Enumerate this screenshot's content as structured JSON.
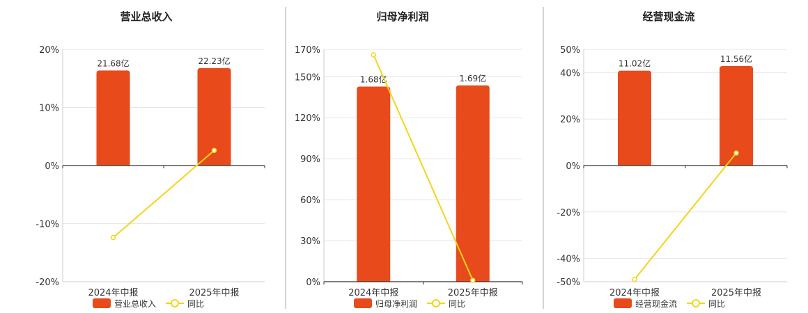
{
  "colors": {
    "bar": "#e84a1b",
    "line": "#f5d41a",
    "grid": "#e6e6ee",
    "axis": "#333333",
    "divider": "#aaaaaa"
  },
  "legend_line_name": "同比",
  "chart_data": [
    {
      "type": "bar",
      "title": "营业总收入",
      "categories": [
        "2024年中报",
        "2025年中报"
      ],
      "series": [
        {
          "name": "营业总收入",
          "type": "bar",
          "values": [
            21.68,
            22.23
          ],
          "labels": [
            "21.68亿",
            "22.23亿"
          ]
        },
        {
          "name": "同比",
          "type": "line",
          "values": [
            -12.4,
            2.6
          ]
        }
      ],
      "yticks": [
        20,
        10,
        0,
        -10,
        -20
      ],
      "ytick_labels": [
        "20%",
        "10%",
        "0%",
        "-10%",
        "-20%"
      ],
      "ylim": [
        -20,
        20
      ],
      "bar_scale_max": 26.5,
      "grid": true,
      "legend": "bottom"
    },
    {
      "type": "bar",
      "title": "归母净利润",
      "categories": [
        "2024年中报",
        "2025年中报"
      ],
      "series": [
        {
          "name": "归母净利润",
          "type": "bar",
          "values": [
            1.68,
            1.69
          ],
          "labels": [
            "1.68亿",
            "1.69亿"
          ]
        },
        {
          "name": "同比",
          "type": "line",
          "values": [
            166,
            1
          ]
        }
      ],
      "yticks": [
        170,
        150,
        120,
        90,
        60,
        30,
        0
      ],
      "ytick_labels": [
        "170%",
        "150%",
        "120%",
        "90%",
        "60%",
        "30%",
        "0%"
      ],
      "ylim": [
        0,
        170
      ],
      "bar_scale_max": 2.0,
      "grid": true,
      "legend": "bottom"
    },
    {
      "type": "bar",
      "title": "经营现金流",
      "categories": [
        "2024年中报",
        "2025年中报"
      ],
      "series": [
        {
          "name": "经营现金流",
          "type": "bar",
          "values": [
            11.02,
            11.56
          ],
          "labels": [
            "11.02亿",
            "11.56亿"
          ]
        },
        {
          "name": "同比",
          "type": "line",
          "values": [
            -49,
            5.4
          ]
        }
      ],
      "yticks": [
        50,
        40,
        20,
        0,
        -20,
        -40,
        -50
      ],
      "ytick_labels": [
        "50%",
        "40%",
        "20%",
        "0%",
        "-20%",
        "-40%",
        "-50%"
      ],
      "ylim": [
        -50,
        50
      ],
      "bar_scale_max": 13.5,
      "grid": true,
      "legend": "bottom"
    }
  ]
}
